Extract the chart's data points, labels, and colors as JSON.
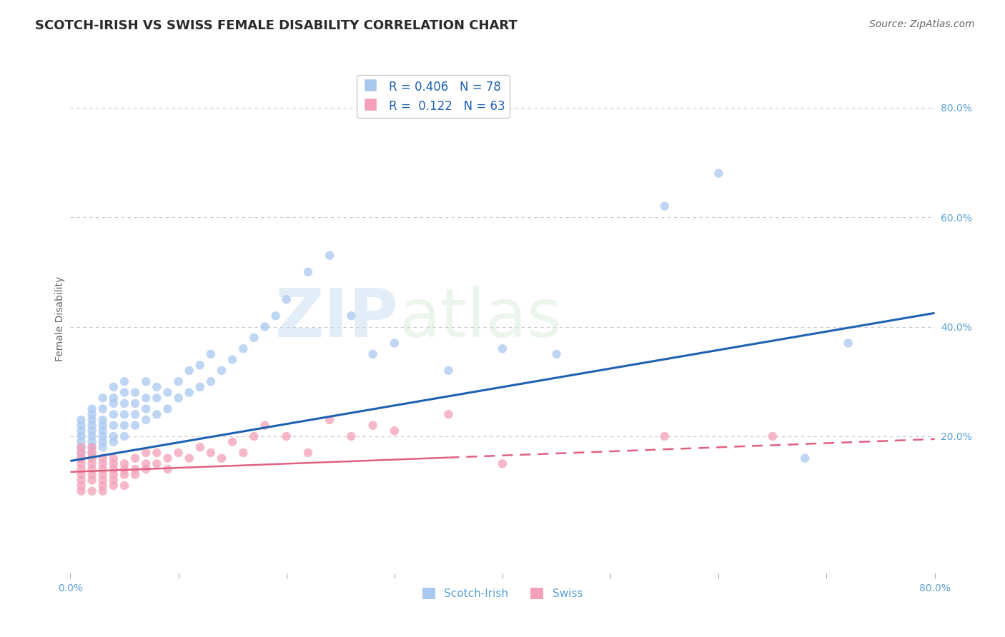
{
  "title": "SCOTCH-IRISH VS SWISS FEMALE DISABILITY CORRELATION CHART",
  "source": "Source: ZipAtlas.com",
  "ylabel": "Female Disability",
  "xlim": [
    0.0,
    0.8
  ],
  "ylim": [
    -0.05,
    0.88
  ],
  "right_yticks": [
    0.2,
    0.4,
    0.6,
    0.8
  ],
  "right_ytick_labels": [
    "20.0%",
    "40.0%",
    "60.0%",
    "80.0%"
  ],
  "series1_color": "#a8c8f0",
  "series2_color": "#f4a0b8",
  "line1_color": "#2060b0",
  "line2_color": "#e06080",
  "background_color": "#ffffff",
  "grid_color": "#c8c8c8",
  "R1": 0.406,
  "N1": 78,
  "R2": 0.122,
  "N2": 63,
  "legend_label1": "Scotch-Irish",
  "legend_label2": "Swiss",
  "line1_x0": 0.0,
  "line1_y0": 0.155,
  "line1_x1": 0.8,
  "line1_y1": 0.425,
  "line2_x0": 0.0,
  "line2_y0": 0.135,
  "line2_x1": 0.8,
  "line2_y1": 0.195,
  "scotch_irish_x": [
    0.01,
    0.01,
    0.01,
    0.01,
    0.01,
    0.01,
    0.01,
    0.01,
    0.02,
    0.02,
    0.02,
    0.02,
    0.02,
    0.02,
    0.02,
    0.02,
    0.02,
    0.03,
    0.03,
    0.03,
    0.03,
    0.03,
    0.03,
    0.03,
    0.03,
    0.04,
    0.04,
    0.04,
    0.04,
    0.04,
    0.04,
    0.04,
    0.05,
    0.05,
    0.05,
    0.05,
    0.05,
    0.05,
    0.06,
    0.06,
    0.06,
    0.06,
    0.07,
    0.07,
    0.07,
    0.07,
    0.08,
    0.08,
    0.08,
    0.09,
    0.09,
    0.1,
    0.1,
    0.11,
    0.11,
    0.12,
    0.12,
    0.13,
    0.13,
    0.14,
    0.15,
    0.16,
    0.17,
    0.18,
    0.19,
    0.2,
    0.22,
    0.24,
    0.26,
    0.28,
    0.3,
    0.35,
    0.4,
    0.45,
    0.55,
    0.6,
    0.68,
    0.72
  ],
  "scotch_irish_y": [
    0.16,
    0.17,
    0.18,
    0.19,
    0.2,
    0.21,
    0.22,
    0.23,
    0.17,
    0.18,
    0.19,
    0.2,
    0.21,
    0.22,
    0.23,
    0.24,
    0.25,
    0.18,
    0.19,
    0.2,
    0.21,
    0.22,
    0.23,
    0.25,
    0.27,
    0.19,
    0.2,
    0.22,
    0.24,
    0.26,
    0.27,
    0.29,
    0.2,
    0.22,
    0.24,
    0.26,
    0.28,
    0.3,
    0.22,
    0.24,
    0.26,
    0.28,
    0.23,
    0.25,
    0.27,
    0.3,
    0.24,
    0.27,
    0.29,
    0.25,
    0.28,
    0.27,
    0.3,
    0.28,
    0.32,
    0.29,
    0.33,
    0.3,
    0.35,
    0.32,
    0.34,
    0.36,
    0.38,
    0.4,
    0.42,
    0.45,
    0.5,
    0.53,
    0.42,
    0.35,
    0.37,
    0.32,
    0.36,
    0.35,
    0.62,
    0.68,
    0.16,
    0.37
  ],
  "swiss_x": [
    0.01,
    0.01,
    0.01,
    0.01,
    0.01,
    0.01,
    0.01,
    0.01,
    0.01,
    0.02,
    0.02,
    0.02,
    0.02,
    0.02,
    0.02,
    0.02,
    0.02,
    0.03,
    0.03,
    0.03,
    0.03,
    0.03,
    0.03,
    0.03,
    0.04,
    0.04,
    0.04,
    0.04,
    0.04,
    0.04,
    0.05,
    0.05,
    0.05,
    0.05,
    0.06,
    0.06,
    0.06,
    0.07,
    0.07,
    0.07,
    0.08,
    0.08,
    0.09,
    0.09,
    0.1,
    0.11,
    0.12,
    0.13,
    0.14,
    0.15,
    0.16,
    0.17,
    0.18,
    0.2,
    0.22,
    0.24,
    0.26,
    0.28,
    0.3,
    0.35,
    0.4,
    0.55,
    0.65
  ],
  "swiss_y": [
    0.12,
    0.13,
    0.14,
    0.15,
    0.16,
    0.17,
    0.18,
    0.1,
    0.11,
    0.13,
    0.14,
    0.15,
    0.16,
    0.17,
    0.18,
    0.1,
    0.12,
    0.13,
    0.14,
    0.15,
    0.16,
    0.1,
    0.11,
    0.12,
    0.13,
    0.14,
    0.15,
    0.16,
    0.11,
    0.12,
    0.13,
    0.14,
    0.15,
    0.11,
    0.13,
    0.14,
    0.16,
    0.14,
    0.15,
    0.17,
    0.15,
    0.17,
    0.14,
    0.16,
    0.17,
    0.16,
    0.18,
    0.17,
    0.16,
    0.19,
    0.17,
    0.2,
    0.22,
    0.2,
    0.17,
    0.23,
    0.2,
    0.22,
    0.21,
    0.24,
    0.15,
    0.2,
    0.2
  ],
  "watermark_zip": "ZIP",
  "watermark_atlas": "atlas",
  "title_fontsize": 13,
  "axis_label_fontsize": 10,
  "tick_fontsize": 10,
  "legend_fontsize": 11,
  "source_fontsize": 10
}
